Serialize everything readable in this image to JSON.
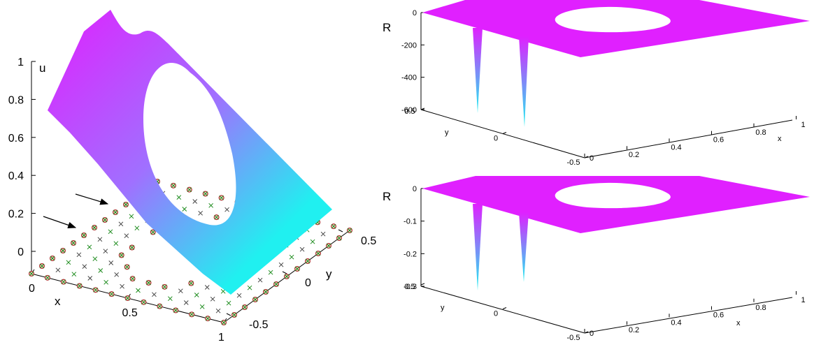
{
  "figure": {
    "colors": {
      "surface_high": "#e020ff",
      "surface_low": "#20f0f0",
      "node_cross": "#444444",
      "node_green": "#1a8a1a",
      "node_circle": "#b03030",
      "arrow": "#000000"
    }
  },
  "chart_data": [
    {
      "type": "surface",
      "panel": "left",
      "zlabel": "u",
      "xlabel": "x",
      "ylabel": "y",
      "xticks": [
        "0",
        "0.5",
        "1"
      ],
      "yticks": [
        "-0.5",
        "0",
        "0.5"
      ],
      "zticks": [
        "0",
        "0.2",
        "0.4",
        "0.6",
        "0.8",
        "1"
      ],
      "xlim": [
        0,
        1
      ],
      "ylim": [
        -0.5,
        0.5
      ],
      "zlim": [
        0,
        1
      ],
      "description_values": {
        "domain": "square [0,1] x [-0.5,0.5] with elliptical hole centered near (0.5, 0)",
        "u_at_x0": 0.8,
        "u_at_x1": 0.1,
        "u_peak": 1.0
      },
      "nodes_legend": [
        "cross",
        "green-cross",
        "circle"
      ],
      "arrows": 2
    },
    {
      "type": "surface",
      "panel": "top-right",
      "zlabel": "R",
      "xlabel": "x",
      "ylabel": "y",
      "xticks": [
        "0",
        "0.2",
        "0.4",
        "0.6",
        "0.8",
        "1"
      ],
      "yticks": [
        "-0.5",
        "0",
        "0.5"
      ],
      "zticks": [
        "0",
        "-200",
        "-400",
        "-600"
      ],
      "xlim": [
        0,
        1
      ],
      "ylim": [
        -0.5,
        0.5
      ],
      "zlim": [
        -600,
        0
      ],
      "spikes": [
        {
          "x": 0.2,
          "y": 0.2,
          "value": -590
        },
        {
          "x": 0.2,
          "y": -0.1,
          "value": -640
        }
      ]
    },
    {
      "type": "surface",
      "panel": "bottom-right",
      "zlabel": "R",
      "xlabel": "x",
      "ylabel": "y",
      "xticks": [
        "0",
        "0.2",
        "0.4",
        "0.6",
        "0.8",
        "1"
      ],
      "yticks": [
        "-0.5",
        "0",
        "0.5"
      ],
      "zticks": [
        "0",
        "-0.1",
        "-0.2",
        "-0.3"
      ],
      "xlim": [
        0,
        1
      ],
      "ylim": [
        -0.5,
        0.5
      ],
      "zlim": [
        -0.3,
        0
      ],
      "spikes": [
        {
          "x": 0.2,
          "y": 0.2,
          "value": -0.3
        },
        {
          "x": 0.2,
          "y": -0.1,
          "value": -0.27
        }
      ]
    }
  ]
}
